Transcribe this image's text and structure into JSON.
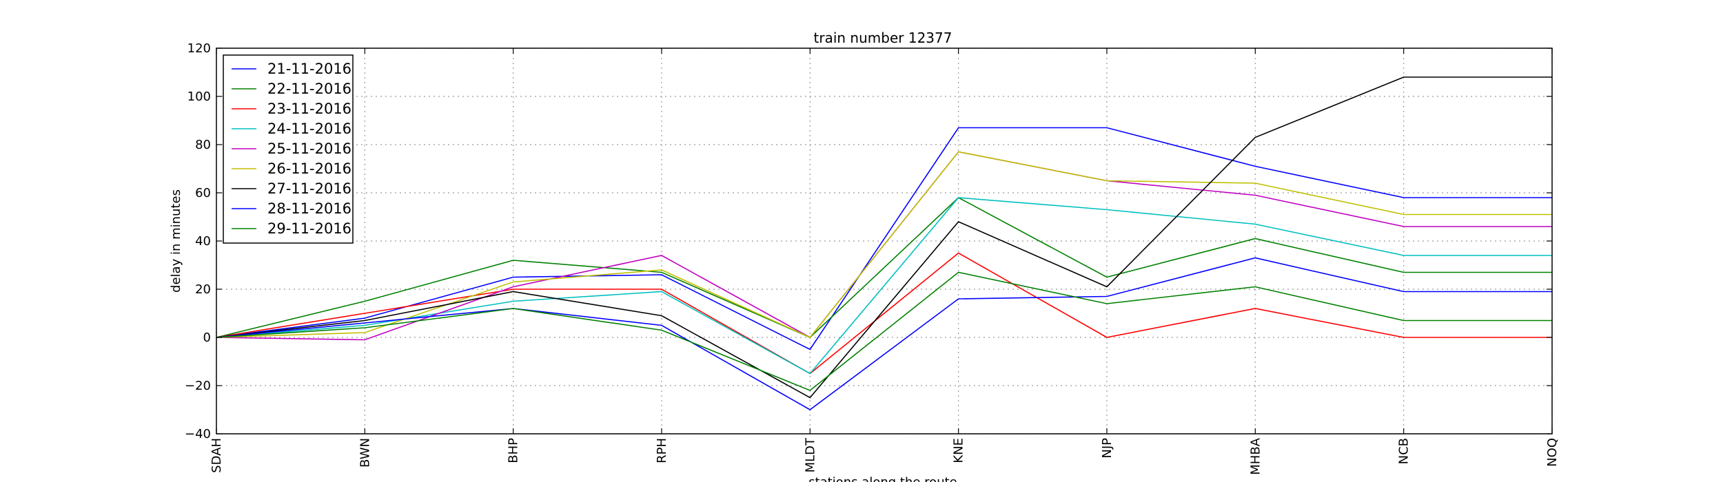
{
  "chart_data": {
    "type": "line",
    "title": "train number 12377",
    "xlabel": "stations along the route",
    "ylabel": "delay in minutes",
    "categories": [
      "SDAH",
      "BWN",
      "BHP",
      "RPH",
      "MLDT",
      "KNE",
      "NJP",
      "MHBA",
      "NCB",
      "NOQ"
    ],
    "ylim": [
      -40,
      120
    ],
    "yticks": [
      -40,
      -20,
      0,
      20,
      40,
      60,
      80,
      100,
      120
    ],
    "grid": true,
    "legend_position": "top-left",
    "series": [
      {
        "name": "21-11-2016",
        "color": "#0000ff",
        "values": [
          0,
          8,
          25,
          26,
          -5,
          87,
          87,
          71,
          58,
          58
        ]
      },
      {
        "name": "22-11-2016",
        "color": "#008000",
        "values": [
          0,
          15,
          32,
          27,
          0,
          58,
          25,
          41,
          27,
          27
        ]
      },
      {
        "name": "23-11-2016",
        "color": "#ff0000",
        "values": [
          0,
          10,
          20,
          20,
          -15,
          35,
          0,
          12,
          0,
          0
        ]
      },
      {
        "name": "24-11-2016",
        "color": "#00bfbf",
        "values": [
          0,
          5,
          15,
          19,
          -15,
          58,
          53,
          47,
          34,
          34
        ]
      },
      {
        "name": "25-11-2016",
        "color": "#bf00bf",
        "values": [
          0,
          -1,
          21,
          34,
          0,
          77,
          65,
          59,
          46,
          46
        ]
      },
      {
        "name": "26-11-2016",
        "color": "#bfbf00",
        "values": [
          0,
          2,
          23,
          28,
          0,
          77,
          65,
          64,
          51,
          51
        ]
      },
      {
        "name": "27-11-2016",
        "color": "#000000",
        "values": [
          0,
          7,
          19,
          9,
          -25,
          48,
          21,
          83,
          108,
          108
        ]
      },
      {
        "name": "28-11-2016",
        "color": "#0000ff",
        "values": [
          0,
          6,
          12,
          5,
          -30,
          16,
          17,
          33,
          19,
          19
        ]
      },
      {
        "name": "29-11-2016",
        "color": "#008000",
        "values": [
          0,
          4,
          12,
          3,
          -22,
          27,
          14,
          21,
          7,
          7
        ]
      }
    ]
  }
}
